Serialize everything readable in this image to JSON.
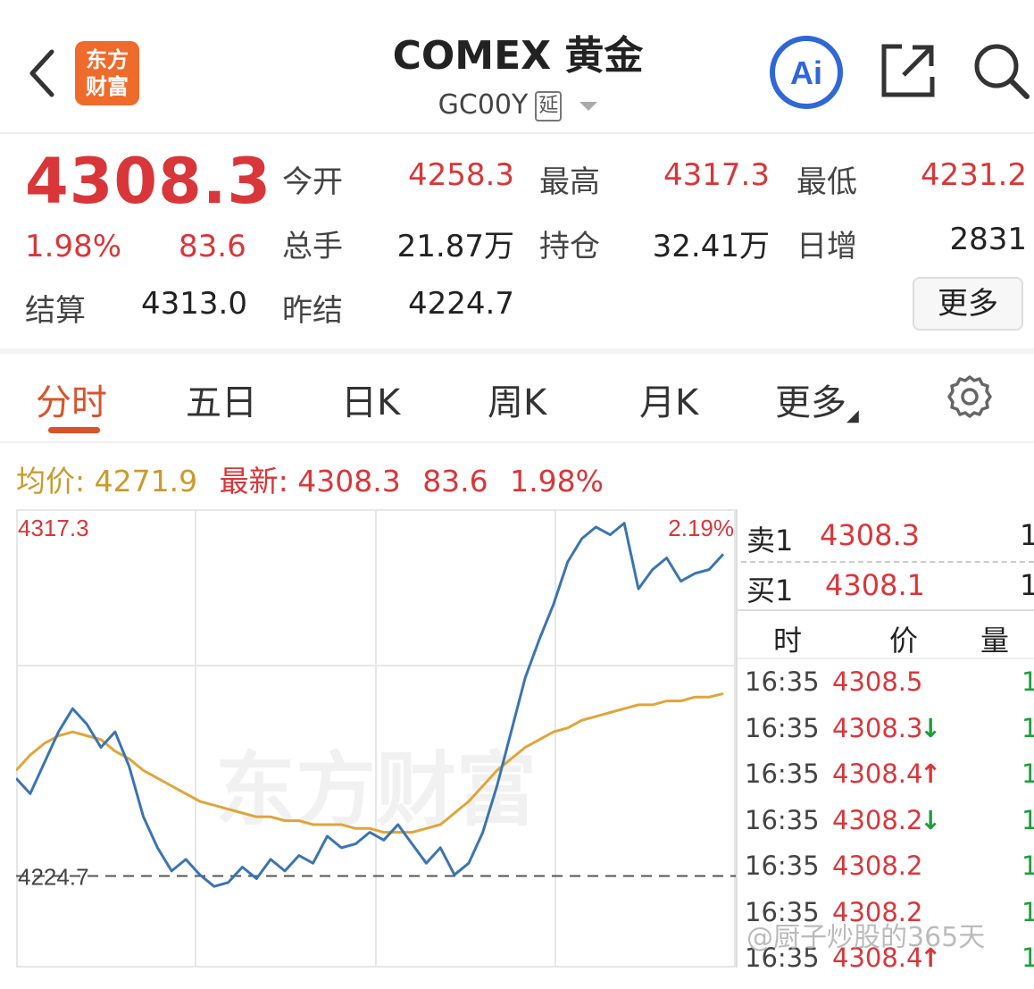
{
  "header": {
    "logo_line1": "东方",
    "logo_line2": "财富",
    "title": "COMEX 黄金",
    "code": "GC00Y",
    "delay_badge": "延",
    "icons": [
      "back-icon",
      "ai-icon",
      "share-icon",
      "search-icon"
    ]
  },
  "quote": {
    "last_price": "4308.3",
    "change_pct": "1.98%",
    "change": "83.6",
    "settle_label": "结算",
    "settle_value": "4313.0",
    "open_label": "今开",
    "open_value": "4258.3",
    "high_label": "最高",
    "high_value": "4317.3",
    "low_label": "最低",
    "low_value": "4231.2",
    "volume_label": "总手",
    "volume_value": "21.87万",
    "oi_label": "持仓",
    "oi_value": "32.41万",
    "oi_change_label": "日增",
    "oi_change_value": "2831",
    "prev_settle_label": "昨结",
    "prev_settle_value": "4224.7",
    "more_button": "更多"
  },
  "tabs": [
    "分时",
    "五日",
    "日K",
    "周K",
    "月K",
    "更多"
  ],
  "info_line": {
    "avg_label": "均价:",
    "avg_value": "4271.9",
    "last_label": "最新:",
    "last_value": "4308.3",
    "change": "83.6",
    "change_pct": "1.98%"
  },
  "chart_data": {
    "type": "line",
    "y_top_label": "4317.3",
    "y_ref_label": "4224.7",
    "pct_top_label": "2.19%",
    "ylim": [
      4201.0,
      4317.3
    ],
    "reference_line": 4224.7,
    "series": [
      {
        "name": "价格",
        "values": [
          4250,
          4246,
          4254,
          4262,
          4268,
          4264,
          4258,
          4262,
          4253,
          4240,
          4232,
          4226,
          4229,
          4225,
          4222,
          4223,
          4227,
          4224,
          4229,
          4226,
          4230,
          4228,
          4235,
          4232,
          4233,
          4236,
          4234,
          4238,
          4233,
          4228,
          4232,
          4225,
          4228,
          4236,
          4248,
          4262,
          4276,
          4286,
          4295,
          4306,
          4312,
          4315,
          4313,
          4316,
          4299,
          4304,
          4307,
          4301,
          4303,
          4304,
          4308
        ]
      },
      {
        "name": "均价",
        "values": [
          4252,
          4256,
          4259,
          4261,
          4262,
          4261,
          4260,
          4257,
          4255,
          4252,
          4250,
          4248,
          4246,
          4244,
          4243,
          4242,
          4241,
          4240,
          4240,
          4239,
          4239,
          4238,
          4238,
          4238,
          4237,
          4237,
          4236,
          4236,
          4236,
          4237,
          4238,
          4241,
          4244,
          4248,
          4252,
          4255,
          4258,
          4260,
          4262,
          4263,
          4265,
          4266,
          4267,
          4268,
          4269,
          4269,
          4270,
          4270,
          4271,
          4271,
          4271.9
        ]
      }
    ],
    "grid": true
  },
  "order_book": {
    "ask_label": "卖1",
    "ask_price": "4308.3",
    "ask_qty": "1",
    "bid_label": "买1",
    "bid_price": "4308.1",
    "bid_qty": "1",
    "col_time": "时",
    "col_price": "价",
    "col_vol": "量"
  },
  "ticks": [
    {
      "time": "16:35",
      "price": "4308.5",
      "dir": "",
      "vol": "1"
    },
    {
      "time": "16:35",
      "price": "4308.3",
      "dir": "↓",
      "vol": "1"
    },
    {
      "time": "16:35",
      "price": "4308.4",
      "dir": "↑",
      "vol": "1"
    },
    {
      "time": "16:35",
      "price": "4308.2",
      "dir": "↓",
      "vol": "1"
    },
    {
      "time": "16:35",
      "price": "4308.2",
      "dir": "",
      "vol": "1"
    },
    {
      "time": "16:35",
      "price": "4308.2",
      "dir": "",
      "vol": "1"
    },
    {
      "time": "16:35",
      "price": "4308.4",
      "dir": "↑",
      "vol": "1"
    }
  ],
  "watermark": "@厨子炒股的365天",
  "chart_watermark": "东方财富",
  "colors": {
    "up": "#d9363a",
    "down": "#1e9e3a",
    "accent": "#d9532a",
    "price_line": "#3b74b0",
    "avg_line": "#e0a53a"
  }
}
